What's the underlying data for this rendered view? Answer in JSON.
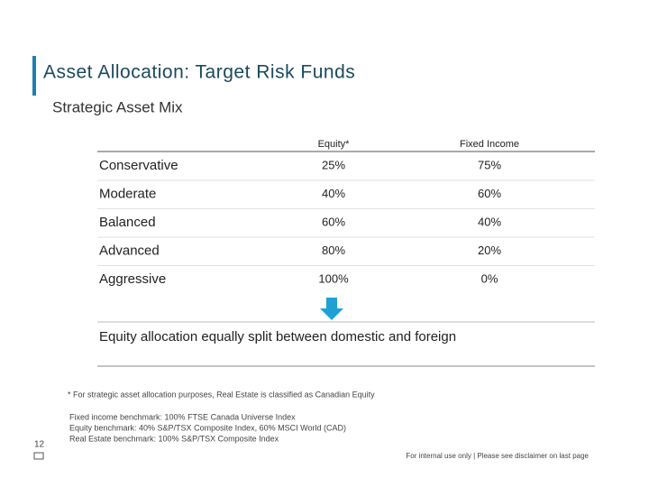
{
  "header": {
    "title": "Asset Allocation: Target Risk Funds",
    "subtitle": "Strategic Asset Mix"
  },
  "table": {
    "columns": [
      "Equity*",
      "Fixed Income"
    ],
    "rows": [
      [
        "Conservative",
        "25%",
        "75%"
      ],
      [
        "Moderate",
        "40%",
        "60%"
      ],
      [
        "Balanced",
        "60%",
        "40%"
      ],
      [
        "Advanced",
        "80%",
        "20%"
      ],
      [
        "Aggressive",
        "100%",
        "0%"
      ]
    ]
  },
  "callout": "Equity allocation equally split between domestic and foreign",
  "footnote": "* For strategic asset allocation purposes, Real Estate is classified as Canadian Equity",
  "benchmarks": [
    "Fixed income benchmark: 100% FTSE Canada Universe Index",
    "Equity benchmark: 40% S&P/TSX Composite Index, 60% MSCI World (CAD)",
    "Real Estate benchmark: 100% S&P/TSX Composite Index"
  ],
  "page_number": "12",
  "footer": "For internal use only | Please see disclaimer on last page"
}
